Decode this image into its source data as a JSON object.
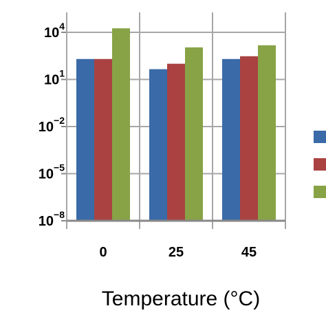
{
  "chart_data": {
    "type": "bar",
    "scale": "log",
    "categories": [
      "0",
      "25",
      "45"
    ],
    "xlabel": "Temperature (°C)",
    "ylabel": "",
    "ylim": [
      1e-08,
      10000.0
    ],
    "yticks": [
      {
        "base": "10",
        "exp": "4",
        "value": 10000.0
      },
      {
        "base": "10",
        "exp": "1",
        "value": 10.0
      },
      {
        "base": "10",
        "exp": "−2",
        "value": 0.01
      },
      {
        "base": "10",
        "exp": "−5",
        "value": 1e-05
      },
      {
        "base": "10",
        "exp": "−8",
        "value": 1e-08
      }
    ],
    "grid": true,
    "legend": "right (labels not visible)",
    "series": [
      {
        "color": "#3a6aa8",
        "values": [
          200,
          45,
          200
        ]
      },
      {
        "color": "#a94241",
        "values": [
          200,
          100,
          300
        ]
      },
      {
        "color": "#87a346",
        "values": [
          18000,
          1100,
          1500
        ]
      }
    ]
  }
}
